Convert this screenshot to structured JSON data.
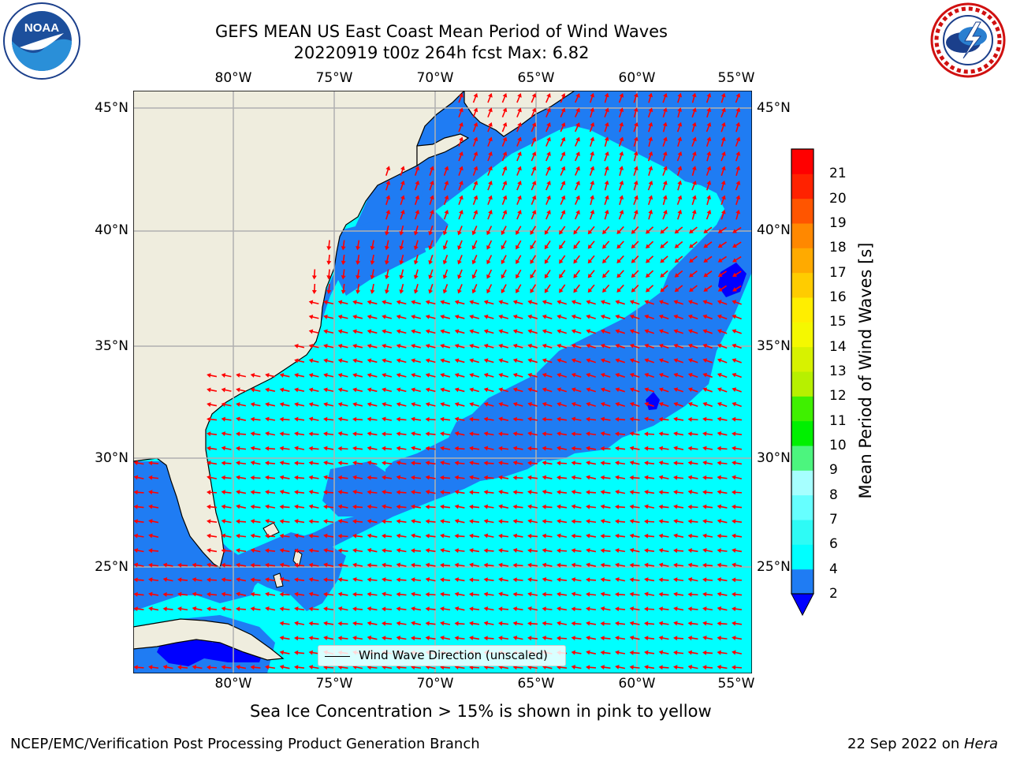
{
  "title": {
    "line1": "GEFS MEAN US East Coast Mean Period of Wind Waves",
    "line2": "20220919 t00z 264h fcst   Max: 6.82"
  },
  "logos": {
    "left": "NOAA",
    "left_ring_text": "NATIONAL OCEANIC AND ATMOSPHERIC ADMINISTRATION · U.S. DEPARTMENT OF COMMERCE",
    "right_ring_text": "NATIONAL WEATHER SERVICE"
  },
  "map": {
    "lon_ticks": [
      "80°W",
      "75°W",
      "70°W",
      "65°W",
      "60°W",
      "55°W"
    ],
    "lat_ticks": [
      "45°N",
      "40°N",
      "35°N",
      "30°N",
      "25°N"
    ],
    "lon_range": [
      -85,
      -54.3
    ],
    "lat_range": [
      20.5,
      45.8
    ],
    "grid": true,
    "colors": {
      "land": "#efedde",
      "band_2_4": "#1f7cf3",
      "band_4_6": "#00ffff",
      "band_below_2": "#0000ff",
      "arrows": "#ff0000",
      "grid": "#b0b0b0"
    },
    "legend": "Wind Wave Direction (unscaled)"
  },
  "colorbar": {
    "label": "Mean Period of Wind Waves [s]",
    "ticks": [
      2,
      4,
      6,
      7,
      8,
      9,
      10,
      11,
      12,
      13,
      14,
      15,
      16,
      17,
      18,
      19,
      20,
      21
    ],
    "colors": [
      "#1f7cf3",
      "#00ffff",
      "#2efbf5",
      "#66ffff",
      "#a6ffff",
      "#4cf57e",
      "#00f000",
      "#3ff000",
      "#b7f000",
      "#d7f200",
      "#f5f800",
      "#ffee00",
      "#ffcc00",
      "#ffaa00",
      "#ff8800",
      "#ff5500",
      "#ff2200",
      "#ff0000"
    ],
    "extend_min_color": "#0000ff"
  },
  "note": "Sea Ice Concentration > 15% is shown in pink to yellow",
  "footer": {
    "left": "NCEP/EMC/Verification Post Processing Product Generation Branch",
    "date": "22 Sep 2022 on ",
    "host": "Hera"
  }
}
